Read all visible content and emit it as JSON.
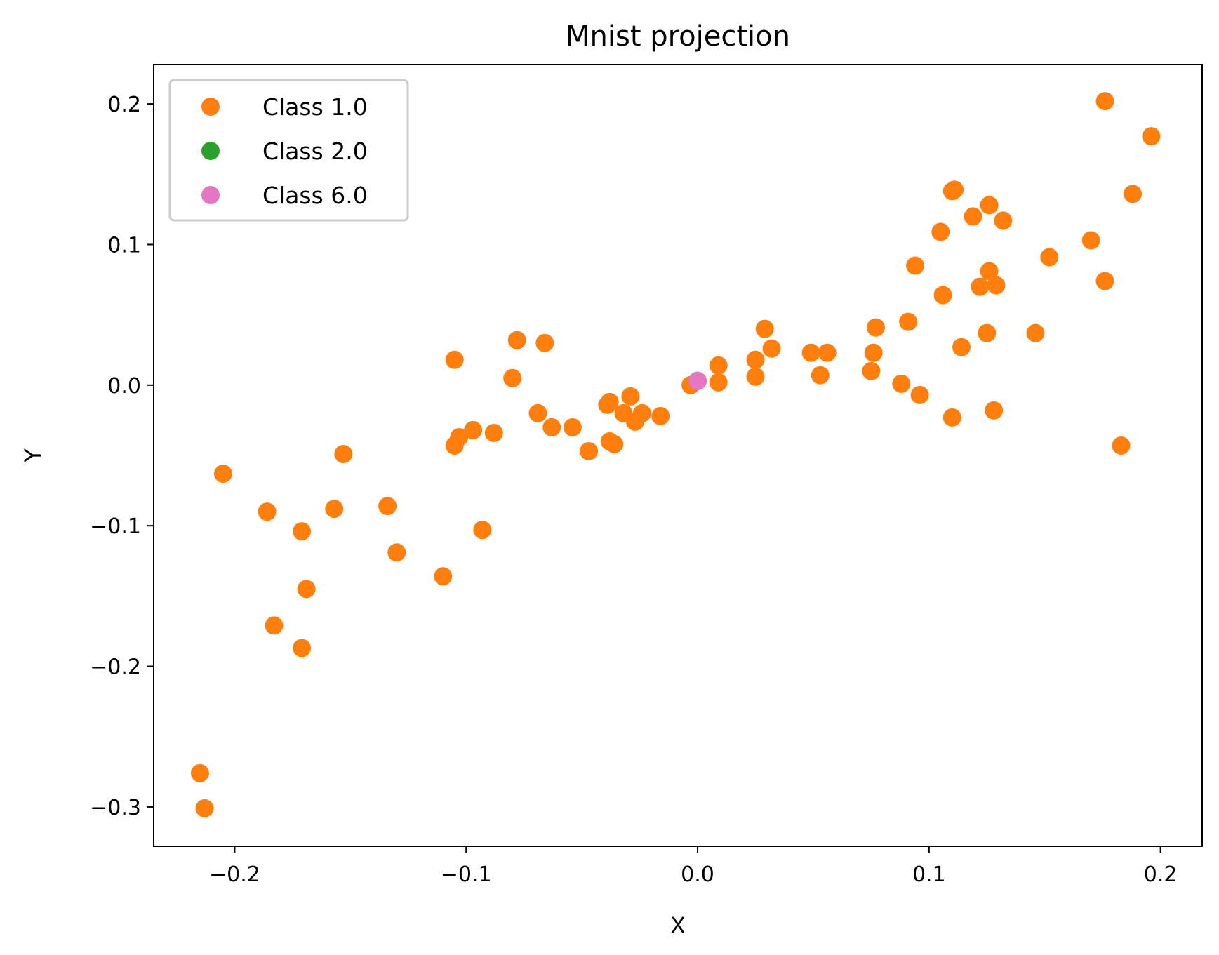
{
  "chart_data": {
    "type": "scatter",
    "title": "Mnist projection",
    "xlabel": "X",
    "ylabel": "Y",
    "xlim": [
      -0.235,
      0.218
    ],
    "ylim": [
      -0.328,
      0.228
    ],
    "x_ticks": [
      -0.2,
      -0.1,
      0.0,
      0.1,
      0.2
    ],
    "x_tick_labels": [
      "−0.2",
      "−0.1",
      "0.0",
      "0.1",
      "0.2"
    ],
    "y_ticks": [
      -0.3,
      -0.2,
      -0.1,
      0.0,
      0.1,
      0.2
    ],
    "y_tick_labels": [
      "−0.3",
      "−0.2",
      "−0.1",
      "0.0",
      "0.1",
      "0.2"
    ],
    "grid": false,
    "legend_position": "top-left",
    "series": [
      {
        "name": "Class 1.0",
        "color": "#ff7f0e",
        "points": [
          [
            -0.215,
            -0.276
          ],
          [
            -0.213,
            -0.301
          ],
          [
            -0.205,
            -0.063
          ],
          [
            -0.186,
            -0.09
          ],
          [
            -0.183,
            -0.171
          ],
          [
            -0.171,
            -0.187
          ],
          [
            -0.171,
            -0.104
          ],
          [
            -0.169,
            -0.145
          ],
          [
            -0.157,
            -0.088
          ],
          [
            -0.153,
            -0.049
          ],
          [
            -0.134,
            -0.086
          ],
          [
            -0.13,
            -0.119
          ],
          [
            -0.11,
            -0.136
          ],
          [
            -0.105,
            0.018
          ],
          [
            -0.105,
            -0.043
          ],
          [
            -0.103,
            -0.037
          ],
          [
            -0.097,
            -0.032
          ],
          [
            -0.093,
            -0.103
          ],
          [
            -0.088,
            -0.034
          ],
          [
            -0.08,
            0.005
          ],
          [
            -0.078,
            0.032
          ],
          [
            -0.069,
            -0.02
          ],
          [
            -0.066,
            0.03
          ],
          [
            -0.063,
            -0.03
          ],
          [
            -0.054,
            -0.03
          ],
          [
            -0.047,
            -0.047
          ],
          [
            -0.039,
            -0.014
          ],
          [
            -0.038,
            -0.012
          ],
          [
            -0.038,
            -0.04
          ],
          [
            -0.036,
            -0.042
          ],
          [
            -0.032,
            -0.02
          ],
          [
            -0.029,
            -0.008
          ],
          [
            -0.027,
            -0.026
          ],
          [
            -0.024,
            -0.02
          ],
          [
            -0.016,
            -0.022
          ],
          [
            -0.003,
            0.0
          ],
          [
            0.0,
            0.003
          ],
          [
            0.009,
            0.014
          ],
          [
            0.009,
            0.002
          ],
          [
            0.025,
            0.018
          ],
          [
            0.025,
            0.006
          ],
          [
            0.029,
            0.04
          ],
          [
            0.032,
            0.026
          ],
          [
            0.049,
            0.023
          ],
          [
            0.053,
            0.007
          ],
          [
            0.056,
            0.023
          ],
          [
            0.075,
            0.01
          ],
          [
            0.076,
            0.023
          ],
          [
            0.077,
            0.041
          ],
          [
            0.088,
            0.001
          ],
          [
            0.091,
            0.045
          ],
          [
            0.094,
            0.085
          ],
          [
            0.096,
            -0.007
          ],
          [
            0.105,
            0.109
          ],
          [
            0.106,
            0.064
          ],
          [
            0.11,
            0.138
          ],
          [
            0.11,
            -0.023
          ],
          [
            0.111,
            0.139
          ],
          [
            0.114,
            0.027
          ],
          [
            0.119,
            0.12
          ],
          [
            0.122,
            0.07
          ],
          [
            0.125,
            0.037
          ],
          [
            0.126,
            0.128
          ],
          [
            0.126,
            0.081
          ],
          [
            0.128,
            -0.018
          ],
          [
            0.129,
            0.071
          ],
          [
            0.132,
            0.117
          ],
          [
            0.146,
            0.037
          ],
          [
            0.152,
            0.091
          ],
          [
            0.17,
            0.103
          ],
          [
            0.176,
            0.202
          ],
          [
            0.176,
            0.074
          ],
          [
            0.183,
            -0.043
          ],
          [
            0.188,
            0.136
          ],
          [
            0.196,
            0.177
          ]
        ]
      },
      {
        "name": "Class 2.0",
        "color": "#2ca02c",
        "points": [
          [
            0.0,
            0.003
          ]
        ]
      },
      {
        "name": "Class 6.0",
        "color": "#e377c2",
        "points": [
          [
            0.0,
            0.003
          ]
        ]
      }
    ]
  }
}
